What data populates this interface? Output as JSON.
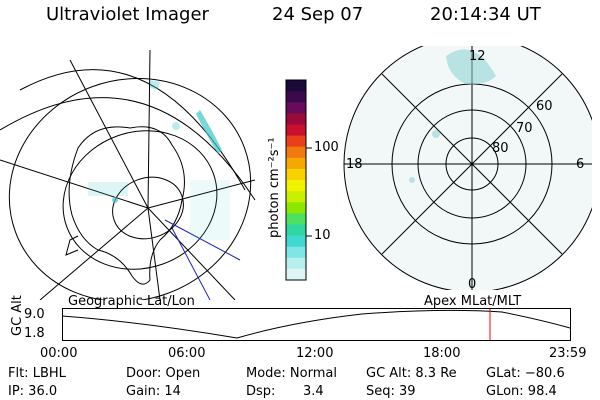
{
  "header": {
    "instrument": "Ultraviolet Imager",
    "date": "24 Sep 07",
    "time": "20:14:34 UT"
  },
  "colorbar": {
    "unit_label": "photon cm⁻²s⁻¹",
    "ticks": [
      "100",
      "10"
    ],
    "colors": [
      "#1a0a3a",
      "#3b0a4d",
      "#6a0a5a",
      "#9a0a3a",
      "#c8102e",
      "#e8401a",
      "#f07a10",
      "#f5a800",
      "#f8d200",
      "#f2f200",
      "#c8f000",
      "#8ce800",
      "#4ee060",
      "#2ed8a0",
      "#40d8d0",
      "#7fe6e6",
      "#b8eeee",
      "#dff5f5"
    ]
  },
  "map_left": {
    "label": "Geographic Lat/Lon",
    "aurora_color": "#40c8c8"
  },
  "map_right": {
    "label": "Apex MLat/MLT",
    "ring_labels": [
      "60",
      "70",
      "80"
    ],
    "mlt_labels": [
      "12",
      "18",
      "6",
      "0"
    ]
  },
  "alt_plot": {
    "axis_label": "GC Alt",
    "y_ticks": [
      "9.0",
      "1.8"
    ],
    "x_ticks": [
      "00:00",
      "06:00",
      "12:00",
      "18:00",
      "23:59"
    ],
    "marker_color": "#ff0000"
  },
  "status": {
    "flt": "Flt: LBHL",
    "ip": "IP: 36.0",
    "door": "Door: Open",
    "gain": "Gain: 14",
    "mode": "Mode: Normal",
    "dsp_label": "Dsp:",
    "dsp_value": "3.4",
    "gc_alt": "GC Alt: 8.3 Re",
    "seq": "Seq: 39",
    "glat": "GLat: −80.6",
    "glon": "GLon: 98.4"
  }
}
